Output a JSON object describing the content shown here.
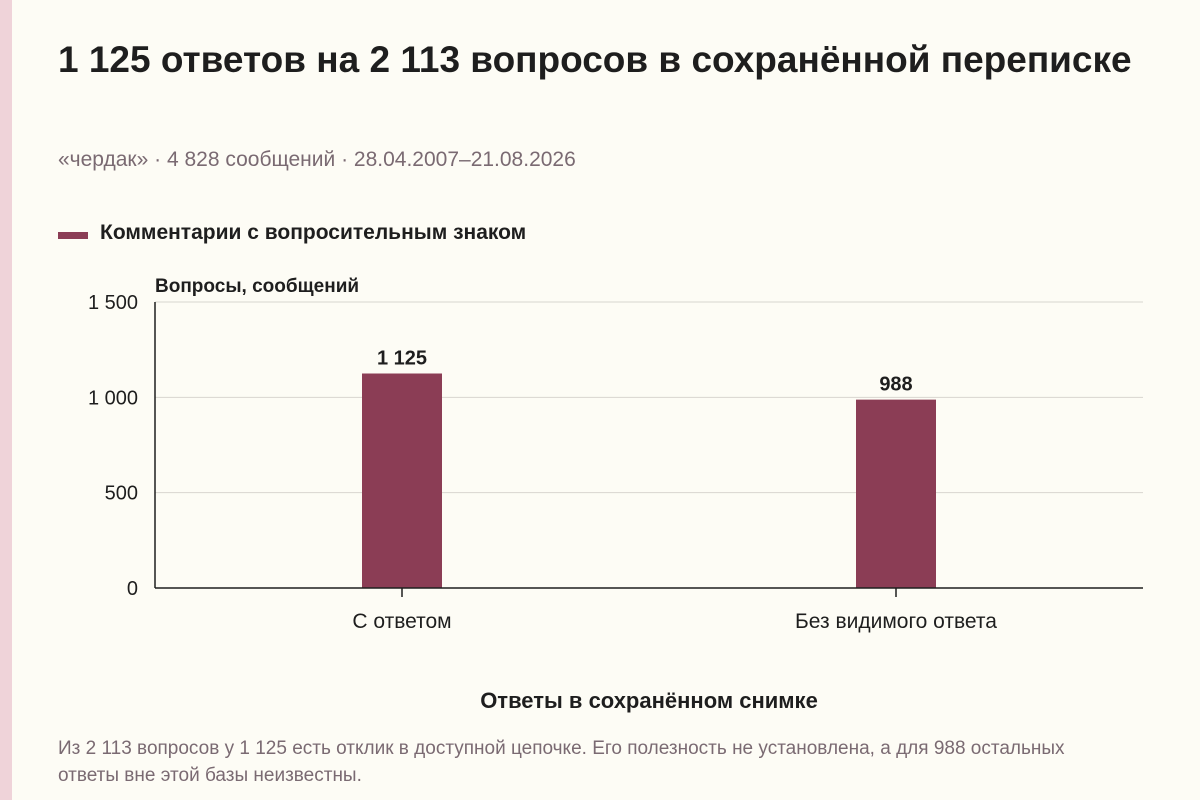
{
  "header": {
    "title": "1 125 ответов на 2 113 вопросов в сохранённой переписке",
    "subtitle": "«чердак» · 4 828 сообщений · 28.04.2007–21.08.2026"
  },
  "colors": {
    "bar": "#8b3d55",
    "grid": "#d8d6cf",
    "axis": "#1e1e1e"
  },
  "chart_data": {
    "type": "bar",
    "title": "",
    "ylabel": "Вопросы, сообщений",
    "xlabel": "Ответы в сохранённом снимке",
    "categories": [
      "С ответом",
      "Без видимого ответа"
    ],
    "series": [
      {
        "name": "Комментарии с вопросительным знаком",
        "values": [
          1125,
          988
        ]
      }
    ],
    "data_labels": [
      "1 125",
      "988"
    ],
    "ylim": [
      0,
      1500
    ],
    "yticks": [
      0,
      500,
      1000,
      1500
    ],
    "ytick_labels": [
      "0",
      "500",
      "1 000",
      "1 500"
    ],
    "grid": true,
    "legend": "top-left"
  },
  "footer": {
    "note": "Из 2 113 вопросов у 1 125 есть отклик в доступной цепочке. Его полезность не установлена, а для 988 остальных ответы вне этой базы неизвестны."
  }
}
